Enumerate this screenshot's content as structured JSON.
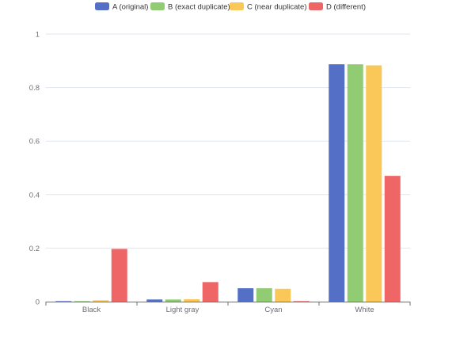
{
  "chart_data": {
    "type": "bar",
    "categories": [
      "Black",
      "Light gray",
      "Cyan",
      "White"
    ],
    "series": [
      {
        "name": "A (original)",
        "color": "#5470c6",
        "values": [
          0.002,
          0.008,
          0.05,
          0.887
        ]
      },
      {
        "name": "B (exact duplicate)",
        "color": "#91cc75",
        "values": [
          0.002,
          0.008,
          0.05,
          0.887
        ]
      },
      {
        "name": "C (near duplicate)",
        "color": "#fac858",
        "values": [
          0.005,
          0.009,
          0.048,
          0.883
        ]
      },
      {
        "name": "D (different)",
        "color": "#ee6666",
        "values": [
          0.197,
          0.073,
          0.002,
          0.47
        ]
      }
    ],
    "y_ticks": [
      "0",
      "0.2",
      "0.4",
      "0.6",
      "0.8",
      "1"
    ],
    "ylim": [
      0,
      1
    ],
    "grid": true,
    "legend_position": "top-center",
    "title": "",
    "xlabel": "",
    "ylabel": ""
  }
}
